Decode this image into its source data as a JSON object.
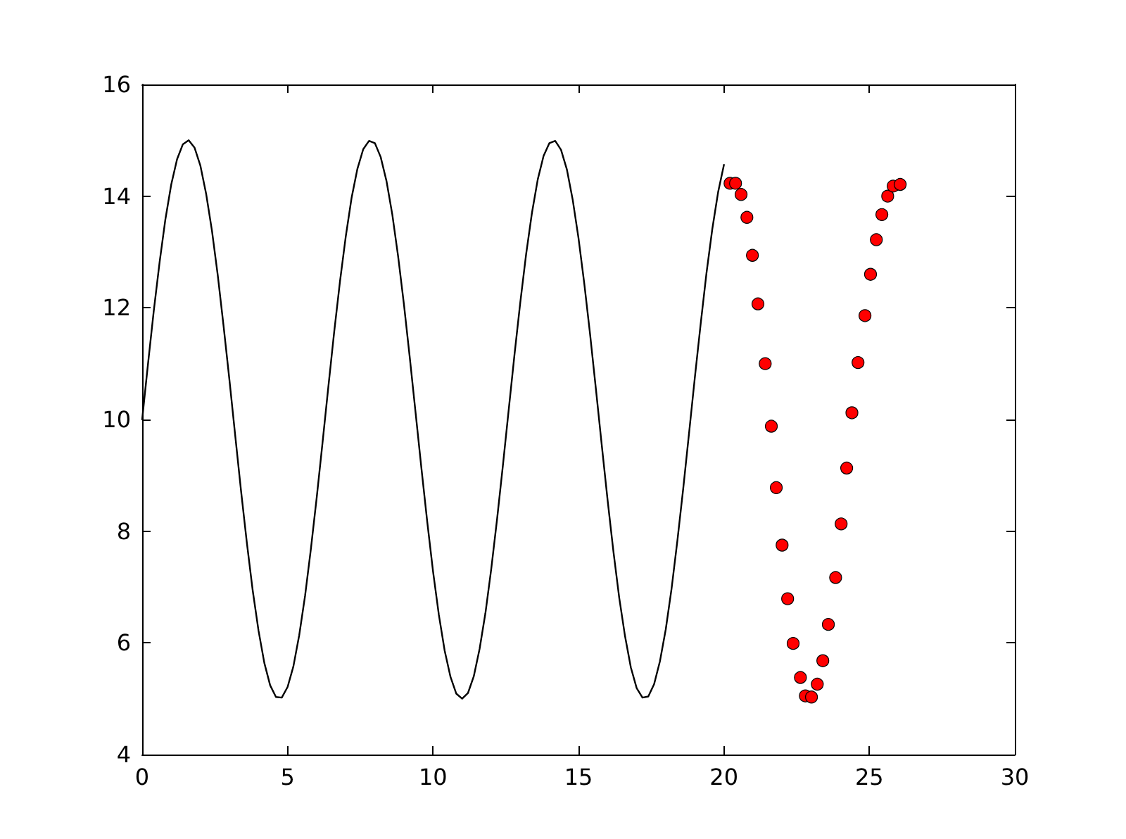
{
  "chart_data": {
    "type": "line",
    "xlim": [
      0,
      30
    ],
    "ylim": [
      4,
      16
    ],
    "xticks": [
      0,
      5,
      10,
      15,
      20,
      25,
      30
    ],
    "yticks": [
      4,
      6,
      8,
      10,
      12,
      14,
      16
    ],
    "series": [
      {
        "color": "#000000",
        "x": [
          0,
          0.2,
          0.4,
          0.6,
          0.8,
          1.0,
          1.2,
          1.4,
          1.6,
          1.8,
          2.0,
          2.2,
          2.4,
          2.6,
          2.8,
          3.0,
          3.2,
          3.4,
          3.6,
          3.8,
          4.0,
          4.2,
          4.4,
          4.6,
          4.8,
          5.0,
          5.2,
          5.4,
          5.6,
          5.8,
          6.0,
          6.2,
          6.4,
          6.6,
          6.8,
          7.0,
          7.2,
          7.4,
          7.6,
          7.8,
          8.0,
          8.2,
          8.4,
          8.6,
          8.8,
          9.0,
          9.2,
          9.4,
          9.6,
          9.8,
          10.0,
          10.2,
          10.4,
          10.6,
          10.8,
          11.0,
          11.2,
          11.4,
          11.6,
          11.8,
          12.0,
          12.2,
          12.4,
          12.6,
          12.8,
          13.0,
          13.2,
          13.4,
          13.6,
          13.8,
          14.0,
          14.2,
          14.4,
          14.6,
          14.8,
          15.0,
          15.2,
          15.4,
          15.6,
          15.8,
          16.0,
          16.2,
          16.4,
          16.6,
          16.8,
          17.0,
          17.2,
          17.4,
          17.6,
          17.8,
          18.0,
          18.2,
          18.4,
          18.6,
          18.8,
          19.0,
          19.2,
          19.4,
          19.6,
          19.8,
          20.0
        ],
        "values": [
          10.0,
          10.99,
          11.95,
          12.82,
          13.59,
          14.21,
          14.66,
          14.93,
          15.0,
          14.87,
          14.55,
          14.04,
          13.38,
          12.58,
          11.67,
          10.71,
          9.71,
          8.72,
          7.79,
          6.94,
          6.22,
          5.64,
          5.24,
          5.03,
          5.02,
          5.21,
          5.58,
          6.14,
          6.84,
          7.68,
          8.6,
          9.58,
          10.58,
          11.56,
          12.47,
          13.28,
          13.97,
          14.49,
          14.84,
          14.99,
          14.95,
          14.7,
          14.27,
          13.67,
          12.92,
          12.06,
          11.11,
          10.12,
          9.13,
          8.17,
          7.28,
          6.5,
          5.86,
          5.39,
          5.09,
          5.0,
          5.1,
          5.4,
          5.89,
          6.53,
          7.32,
          8.21,
          9.17,
          10.17,
          11.16,
          12.1,
          12.96,
          13.7,
          14.3,
          14.72,
          14.95,
          14.99,
          14.83,
          14.48,
          13.94,
          13.25,
          12.43,
          11.52,
          10.54,
          9.54,
          8.56,
          7.64,
          6.81,
          6.12,
          5.56,
          5.19,
          5.02,
          5.04,
          5.26,
          5.67,
          6.24,
          6.97,
          7.83,
          8.76,
          9.75,
          10.75,
          11.71,
          12.62,
          13.41,
          14.07,
          14.56
        ]
      },
      {
        "type": "scatter",
        "color": "#ff0000",
        "marker": "circle",
        "x": [
          20.21,
          20.4,
          20.59,
          20.79,
          20.98,
          21.17,
          21.42,
          21.63,
          21.8,
          22.0,
          22.19,
          22.38,
          22.63,
          22.8,
          23.01,
          23.21,
          23.4,
          23.59,
          23.84,
          24.03,
          24.22,
          24.4,
          24.61,
          24.85,
          25.04,
          25.24,
          25.43,
          25.63,
          25.82,
          26.06
        ],
        "values": [
          14.23,
          14.23,
          14.03,
          13.62,
          12.94,
          12.07,
          11.0,
          9.88,
          8.78,
          7.75,
          6.79,
          5.99,
          5.38,
          5.05,
          5.03,
          5.26,
          5.68,
          6.33,
          7.17,
          8.13,
          9.13,
          10.12,
          11.02,
          11.86,
          12.6,
          13.22,
          13.67,
          14.0,
          14.18,
          14.21
        ]
      }
    ]
  }
}
